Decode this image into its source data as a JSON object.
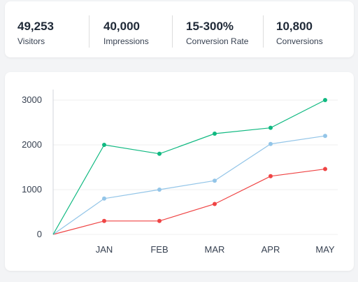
{
  "stats": [
    {
      "value": "49,253",
      "label": "Visitors"
    },
    {
      "value": "40,000",
      "label": "Impressions"
    },
    {
      "value": "15-300%",
      "label": "Conversion Rate"
    },
    {
      "value": "10,800",
      "label": "Conversions"
    }
  ],
  "chart_data": {
    "type": "line",
    "categories": [
      "",
      "JAN",
      "FEB",
      "MAR",
      "APR",
      "MAY"
    ],
    "y_ticks": [
      0,
      1000,
      2000,
      3000
    ],
    "ylim": [
      0,
      3000
    ],
    "grid": true,
    "legend": "none",
    "series": [
      {
        "color": "#10b981",
        "values": [
          0,
          2000,
          1800,
          2250,
          2380,
          3000
        ]
      },
      {
        "color": "#93c5e8",
        "values": [
          0,
          800,
          1000,
          1200,
          2020,
          2200
        ]
      },
      {
        "color": "#ef4444",
        "values": [
          0,
          300,
          300,
          680,
          1300,
          1460
        ]
      }
    ]
  }
}
